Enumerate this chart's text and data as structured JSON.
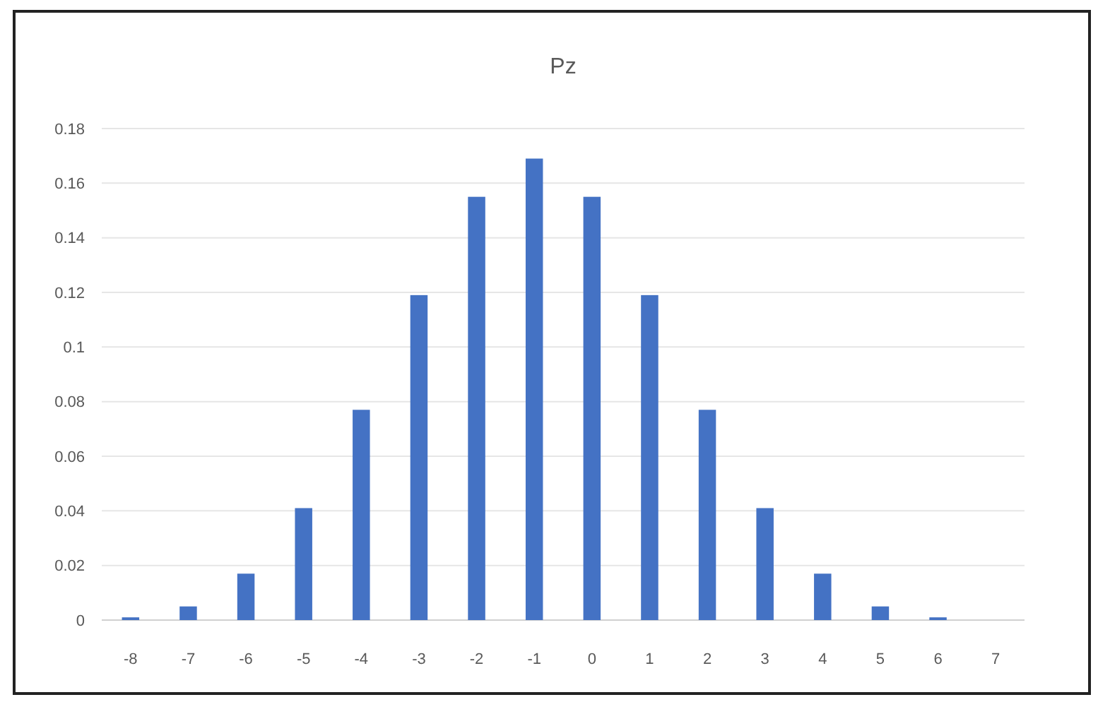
{
  "chart_data": {
    "type": "bar",
    "title": "Pz",
    "categories": [
      "-8",
      "-7",
      "-6",
      "-5",
      "-4",
      "-3",
      "-2",
      "-1",
      "0",
      "1",
      "2",
      "3",
      "4",
      "5",
      "6",
      "7"
    ],
    "values": [
      0.001,
      0.005,
      0.017,
      0.041,
      0.077,
      0.119,
      0.155,
      0.169,
      0.155,
      0.119,
      0.077,
      0.041,
      0.017,
      0.005,
      0.001,
      0
    ],
    "color": "#4472c4",
    "ylim": [
      0,
      0.18
    ],
    "yticks": [
      0,
      0.02,
      0.04,
      0.06,
      0.08,
      0.1,
      0.12,
      0.14,
      0.16,
      0.18
    ],
    "grid": "y"
  }
}
